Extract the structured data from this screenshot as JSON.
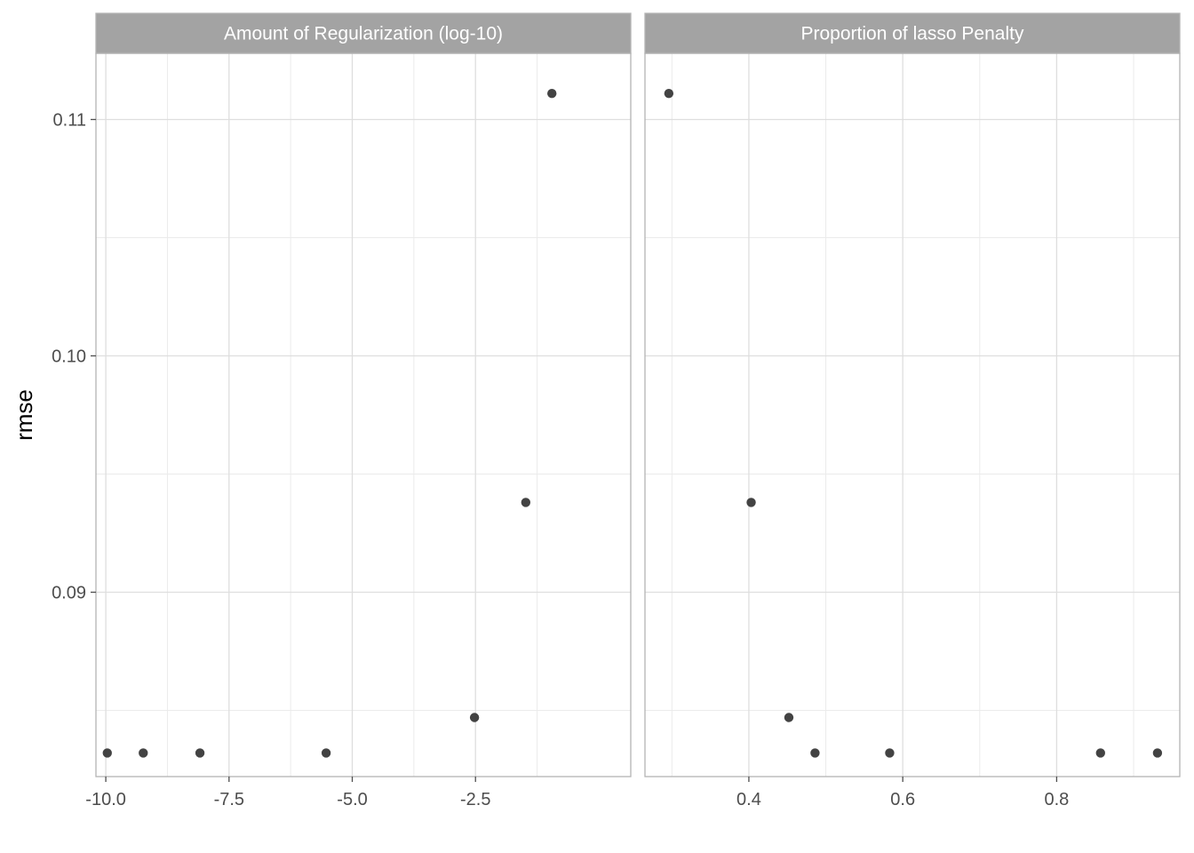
{
  "chart_data": {
    "type": "scatter",
    "ylabel": "rmse",
    "ylim": [
      0.0822,
      0.1128
    ],
    "y_ticks": [
      0.09,
      0.1,
      0.11
    ],
    "y_tick_labels": [
      "0.09",
      "0.10",
      "0.11"
    ],
    "y_minor_ticks": [
      0.085,
      0.095,
      0.105
    ],
    "grid": true,
    "point_color": "#333333",
    "strip_color": "#a3a3a3",
    "panels": [
      {
        "title": "Amount of Regularization (log-10)",
        "xlim": [
          -10.2,
          0.65
        ],
        "x_ticks": [
          -10.0,
          -7.5,
          -5.0,
          -2.5
        ],
        "x_tick_labels": [
          "-10.0",
          "-7.5",
          "-5.0",
          "-2.5"
        ],
        "x_minor_ticks": [
          -8.75,
          -6.25,
          -3.75,
          -1.25
        ],
        "points": [
          {
            "x": -9.97,
            "y": 0.0832
          },
          {
            "x": -9.24,
            "y": 0.0832
          },
          {
            "x": -8.09,
            "y": 0.0832
          },
          {
            "x": -5.53,
            "y": 0.0832
          },
          {
            "x": -2.52,
            "y": 0.0847
          },
          {
            "x": -1.48,
            "y": 0.0938
          },
          {
            "x": -0.95,
            "y": 0.1111
          }
        ]
      },
      {
        "title": "Proportion of lasso Penalty",
        "xlim": [
          0.265,
          0.96
        ],
        "x_ticks": [
          0.4,
          0.6,
          0.8
        ],
        "x_tick_labels": [
          "0.4",
          "0.6",
          "0.8"
        ],
        "x_minor_ticks": [
          0.3,
          0.5,
          0.7,
          0.9
        ],
        "points": [
          {
            "x": 0.296,
            "y": 0.1111
          },
          {
            "x": 0.403,
            "y": 0.0938
          },
          {
            "x": 0.452,
            "y": 0.0847
          },
          {
            "x": 0.486,
            "y": 0.0832
          },
          {
            "x": 0.583,
            "y": 0.0832
          },
          {
            "x": 0.857,
            "y": 0.0832
          },
          {
            "x": 0.931,
            "y": 0.0832
          }
        ]
      }
    ]
  }
}
